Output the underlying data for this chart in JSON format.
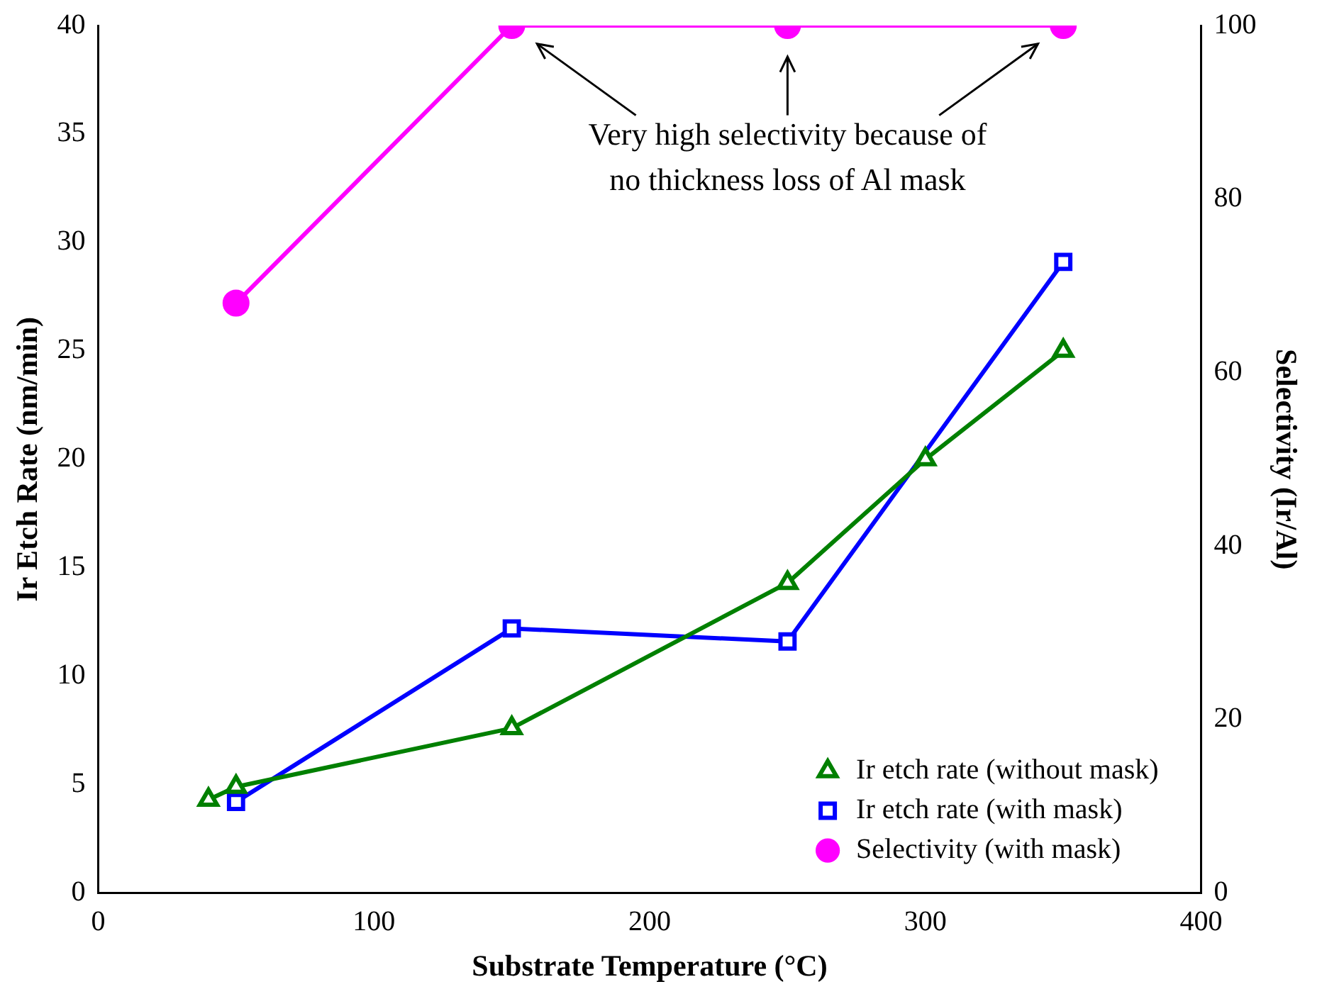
{
  "chart_data": {
    "type": "line",
    "xlabel": "Substrate Temperature (°C)",
    "ylabel": "Ir Etch Rate (nm/min)",
    "y2label": "Selectivity (Ir/Al)",
    "xlim": [
      0,
      400
    ],
    "xticks": [
      0,
      100,
      200,
      300,
      400
    ],
    "ylim": [
      0,
      40
    ],
    "yticks": [
      0,
      5,
      10,
      15,
      20,
      25,
      30,
      35,
      40
    ],
    "y2lim": [
      0,
      100
    ],
    "y2ticks": [
      0,
      20,
      40,
      60,
      80,
      100
    ],
    "grid": false,
    "legend": "bottom right",
    "line_style": "solid",
    "annotations": [
      "Very high selectivity because of\nno thickness loss of Al mask"
    ],
    "series": [
      {
        "name": "Ir etch rate (without mask)",
        "color": "#008000",
        "marker": "triangle",
        "x": [
          40,
          50,
          150,
          250,
          300,
          350
        ],
        "values": [
          4.3,
          4.9,
          7.6,
          14.3,
          20.0,
          25.0
        ]
      },
      {
        "name": "Ir etch rate (with mask)",
        "color": "#0000ff",
        "marker": "square",
        "x": [
          50,
          150,
          250,
          350
        ],
        "values": [
          4.2,
          12.2,
          11.6,
          29.1
        ]
      },
      {
        "name": "Selectivity (with mask)",
        "color": "#ff00ff",
        "marker": "circle",
        "axis": "y2",
        "x": [
          50,
          150,
          250,
          350
        ],
        "values": [
          68,
          100,
          100,
          100
        ]
      }
    ]
  }
}
